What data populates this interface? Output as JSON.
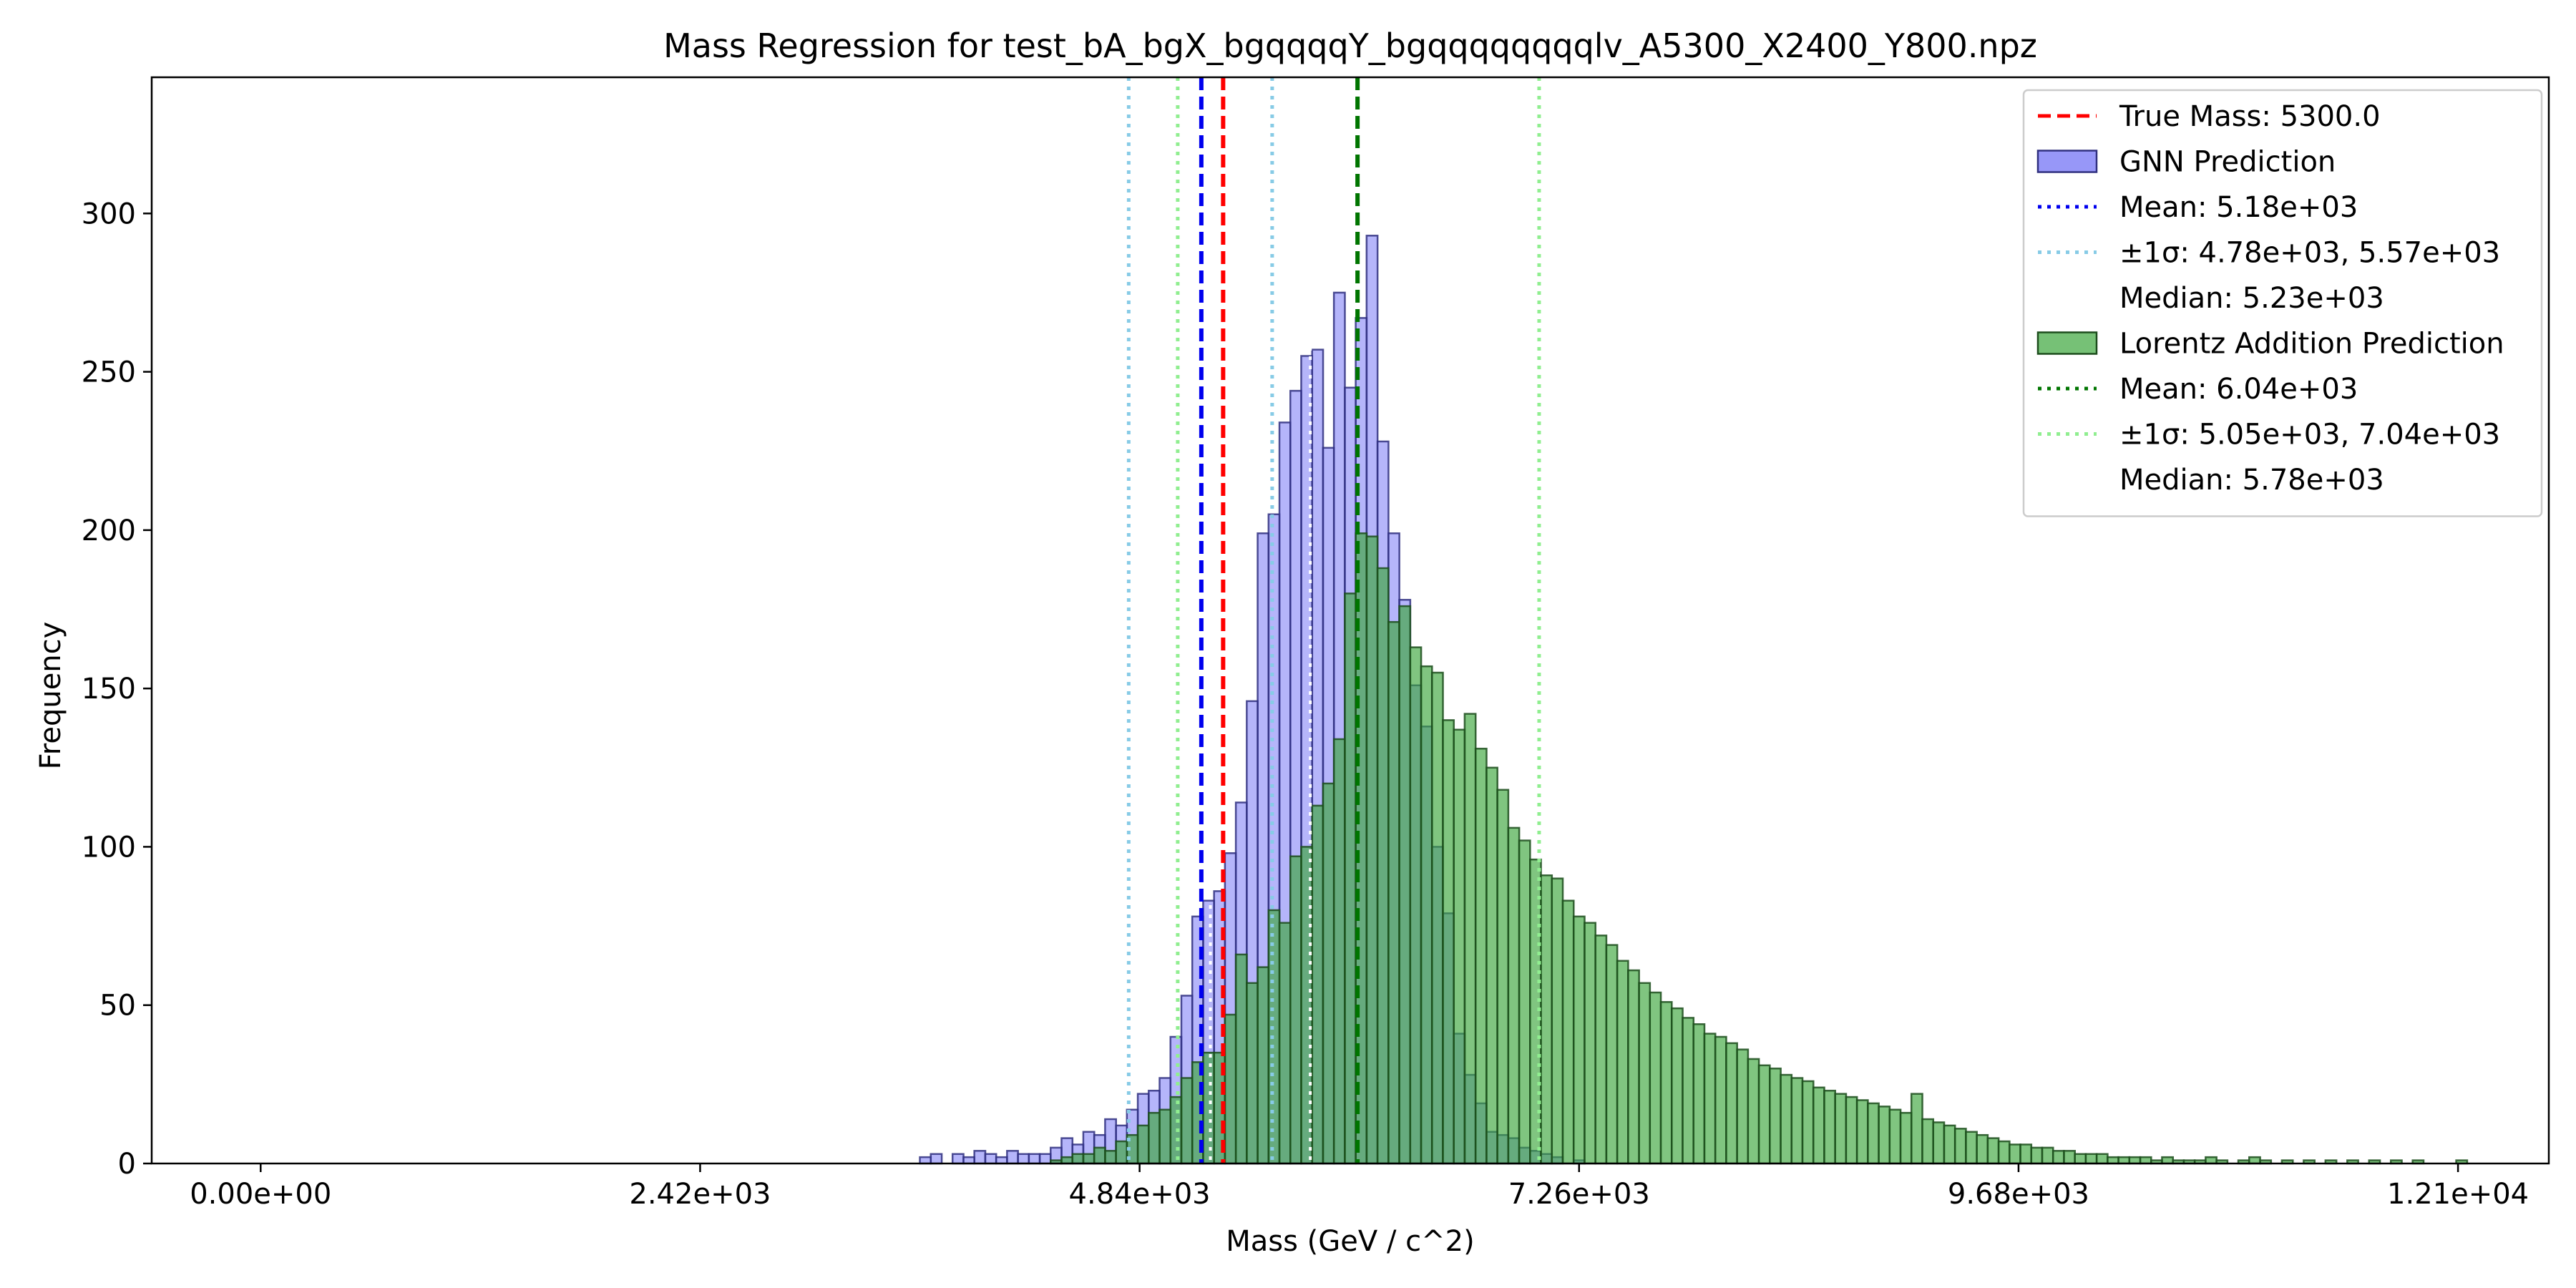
{
  "chart_data": {
    "type": "bar",
    "title": "Mass Regression for test_bA_bgX_bgqqqqY_bgqqqqqqqqlv_A5300_X2400_Y800.npz",
    "xlabel": "Mass (GeV / c^2)",
    "ylabel": "Frequency",
    "xlim": [
      -600,
      12600
    ],
    "ylim": [
      0,
      343
    ],
    "grid": false,
    "legend_position": "upper right",
    "x_ticks": [
      0,
      2420,
      4840,
      7260,
      9680,
      12100
    ],
    "x_tick_labels": [
      "0.00e+00",
      "2.42e+03",
      "4.84e+03",
      "7.26e+03",
      "9.68e+03",
      "1.21e+04"
    ],
    "y_ticks": [
      0,
      50,
      100,
      150,
      200,
      250,
      300
    ],
    "y_tick_labels": [
      "0",
      "50",
      "100",
      "150",
      "200",
      "250",
      "300"
    ],
    "bin_width": 60.5,
    "series": [
      {
        "name": "GNN Prediction",
        "color": "#6b6bf5",
        "alpha": 0.5,
        "edgecolor": "#303080",
        "bins": [
          [
            3630,
            2
          ],
          [
            3690,
            3
          ],
          [
            3810,
            3
          ],
          [
            3870,
            2
          ],
          [
            3930,
            4
          ],
          [
            3990,
            3
          ],
          [
            4050,
            2
          ],
          [
            4110,
            4
          ],
          [
            4170,
            3
          ],
          [
            4230,
            3
          ],
          [
            4290,
            3
          ],
          [
            4350,
            5
          ],
          [
            4410,
            8
          ],
          [
            4470,
            6
          ],
          [
            4530,
            10
          ],
          [
            4590,
            9
          ],
          [
            4650,
            14
          ],
          [
            4710,
            12
          ],
          [
            4770,
            17
          ],
          [
            4830,
            22
          ],
          [
            4890,
            23
          ],
          [
            4950,
            27
          ],
          [
            5010,
            40
          ],
          [
            5070,
            53
          ],
          [
            5130,
            78
          ],
          [
            5190,
            83
          ],
          [
            5250,
            86
          ],
          [
            5310,
            98
          ],
          [
            5370,
            114
          ],
          [
            5430,
            146
          ],
          [
            5490,
            199
          ],
          [
            5550,
            205
          ],
          [
            5610,
            234
          ],
          [
            5670,
            244
          ],
          [
            5730,
            255
          ],
          [
            5790,
            257
          ],
          [
            5850,
            226
          ],
          [
            5910,
            275
          ],
          [
            5970,
            245
          ],
          [
            6030,
            267
          ],
          [
            6090,
            293
          ],
          [
            6150,
            228
          ],
          [
            6210,
            199
          ],
          [
            6270,
            178
          ],
          [
            6330,
            151
          ],
          [
            6390,
            138
          ],
          [
            6450,
            100
          ],
          [
            6510,
            79
          ],
          [
            6570,
            41
          ],
          [
            6630,
            28
          ],
          [
            6690,
            19
          ],
          [
            6750,
            10
          ],
          [
            6810,
            9
          ],
          [
            6870,
            8
          ],
          [
            6930,
            5
          ],
          [
            6990,
            4
          ],
          [
            7050,
            3
          ],
          [
            7110,
            2
          ],
          [
            7230,
            1
          ]
        ]
      },
      {
        "name": "Lorentz Addition Prediction",
        "color": "#3ca63c",
        "alpha": 0.65,
        "edgecolor": "#1c4d1c",
        "bins": [
          [
            4350,
            1
          ],
          [
            4410,
            2
          ],
          [
            4470,
            3
          ],
          [
            4530,
            3
          ],
          [
            4590,
            5
          ],
          [
            4650,
            4
          ],
          [
            4710,
            7
          ],
          [
            4770,
            9
          ],
          [
            4830,
            12
          ],
          [
            4890,
            16
          ],
          [
            4950,
            17
          ],
          [
            5010,
            21
          ],
          [
            5070,
            27
          ],
          [
            5130,
            32
          ],
          [
            5190,
            35
          ],
          [
            5250,
            35
          ],
          [
            5310,
            47
          ],
          [
            5370,
            66
          ],
          [
            5430,
            57
          ],
          [
            5490,
            62
          ],
          [
            5550,
            80
          ],
          [
            5610,
            76
          ],
          [
            5670,
            97
          ],
          [
            5730,
            100
          ],
          [
            5790,
            113
          ],
          [
            5850,
            120
          ],
          [
            5910,
            134
          ],
          [
            5970,
            180
          ],
          [
            6030,
            199
          ],
          [
            6090,
            198
          ],
          [
            6150,
            188
          ],
          [
            6210,
            171
          ],
          [
            6270,
            176
          ],
          [
            6330,
            163
          ],
          [
            6390,
            157
          ],
          [
            6450,
            155
          ],
          [
            6510,
            140
          ],
          [
            6570,
            137
          ],
          [
            6630,
            142
          ],
          [
            6690,
            131
          ],
          [
            6750,
            125
          ],
          [
            6810,
            118
          ],
          [
            6870,
            106
          ],
          [
            6930,
            102
          ],
          [
            6990,
            96
          ],
          [
            7050,
            91
          ],
          [
            7110,
            90
          ],
          [
            7170,
            83
          ],
          [
            7230,
            78
          ],
          [
            7290,
            76
          ],
          [
            7350,
            72
          ],
          [
            7410,
            69
          ],
          [
            7470,
            64
          ],
          [
            7530,
            61
          ],
          [
            7590,
            57
          ],
          [
            7650,
            54
          ],
          [
            7710,
            51
          ],
          [
            7770,
            49
          ],
          [
            7830,
            46
          ],
          [
            7890,
            44
          ],
          [
            7950,
            41
          ],
          [
            8010,
            40
          ],
          [
            8070,
            38
          ],
          [
            8130,
            36
          ],
          [
            8190,
            33
          ],
          [
            8250,
            31
          ],
          [
            8310,
            30
          ],
          [
            8370,
            28
          ],
          [
            8430,
            27
          ],
          [
            8490,
            26
          ],
          [
            8550,
            24
          ],
          [
            8610,
            23
          ],
          [
            8670,
            22
          ],
          [
            8730,
            21
          ],
          [
            8790,
            20
          ],
          [
            8850,
            19
          ],
          [
            8910,
            18
          ],
          [
            8970,
            17
          ],
          [
            9030,
            16
          ],
          [
            9090,
            22
          ],
          [
            9150,
            14
          ],
          [
            9210,
            13
          ],
          [
            9270,
            12
          ],
          [
            9330,
            11
          ],
          [
            9390,
            10
          ],
          [
            9450,
            9
          ],
          [
            9510,
            8
          ],
          [
            9570,
            7
          ],
          [
            9630,
            6
          ],
          [
            9690,
            6
          ],
          [
            9750,
            5
          ],
          [
            9810,
            5
          ],
          [
            9870,
            4
          ],
          [
            9930,
            4
          ],
          [
            9990,
            3
          ],
          [
            10050,
            3
          ],
          [
            10110,
            3
          ],
          [
            10170,
            2
          ],
          [
            10230,
            2
          ],
          [
            10290,
            2
          ],
          [
            10350,
            2
          ],
          [
            10410,
            1
          ],
          [
            10470,
            2
          ],
          [
            10530,
            1
          ],
          [
            10590,
            1
          ],
          [
            10650,
            1
          ],
          [
            10710,
            2
          ],
          [
            10770,
            1
          ],
          [
            10890,
            1
          ],
          [
            10950,
            2
          ],
          [
            11010,
            1
          ],
          [
            11130,
            1
          ],
          [
            11250,
            1
          ],
          [
            11370,
            1
          ],
          [
            11490,
            1
          ],
          [
            11610,
            1
          ],
          [
            11730,
            1
          ],
          [
            11850,
            1
          ],
          [
            12090,
            1
          ]
        ]
      }
    ],
    "vlines": [
      {
        "name": "true-mass-line",
        "x": 5300,
        "color": "#ff0000",
        "style": "dashed",
        "width": 6
      },
      {
        "name": "gnn-mean-line",
        "x": 5180,
        "color": "#0000ee",
        "style": "dashed",
        "width": 6
      },
      {
        "name": "gnn-sigma-low-line",
        "x": 4780,
        "color": "#87cbe6",
        "style": "dotted",
        "width": 5
      },
      {
        "name": "gnn-sigma-high-line",
        "x": 5570,
        "color": "#87cbe6",
        "style": "dotted",
        "width": 5
      },
      {
        "name": "lorentz-mean-line",
        "x": 6040,
        "color": "#007500",
        "style": "dashed",
        "width": 6
      },
      {
        "name": "lorentz-sigma-low-line",
        "x": 5050,
        "color": "#90ee90",
        "style": "dotted",
        "width": 5
      },
      {
        "name": "lorentz-sigma-high-line",
        "x": 7040,
        "color": "#90ee90",
        "style": "dotted",
        "width": 5
      },
      {
        "name": "gnn-median-line",
        "x": 5230,
        "color": "#ffffff",
        "style": "dotted",
        "width": 4
      },
      {
        "name": "lorentz-median-line",
        "x": 5780,
        "color": "#ffffff",
        "style": "dotted",
        "width": 4
      }
    ],
    "legend": [
      {
        "label": "True Mass: 5300.0",
        "kind": "line",
        "color": "#ff0000",
        "style": "dashed"
      },
      {
        "label": "GNN Prediction",
        "kind": "patch",
        "color": "#6b6bf5",
        "edgecolor": "#303080"
      },
      {
        "label": "Mean: 5.18e+03",
        "kind": "line",
        "color": "#0000ee",
        "style": "dotted"
      },
      {
        "label": "±1σ: 4.78e+03, 5.57e+03",
        "kind": "line",
        "color": "#87cbe6",
        "style": "dotted"
      },
      {
        "label": "Median: 5.23e+03",
        "kind": "line",
        "color": "#ffffff",
        "style": "dotted"
      },
      {
        "label": "Lorentz Addition Prediction",
        "kind": "patch",
        "color": "#3ca63c",
        "edgecolor": "#1c4d1c"
      },
      {
        "label": "Mean: 6.04e+03",
        "kind": "line",
        "color": "#007500",
        "style": "dotted"
      },
      {
        "label": "±1σ: 5.05e+03, 7.04e+03",
        "kind": "line",
        "color": "#90ee90",
        "style": "dotted"
      },
      {
        "label": "Median: 5.78e+03",
        "kind": "line",
        "color": "#ffffff",
        "style": "dotted"
      }
    ]
  }
}
